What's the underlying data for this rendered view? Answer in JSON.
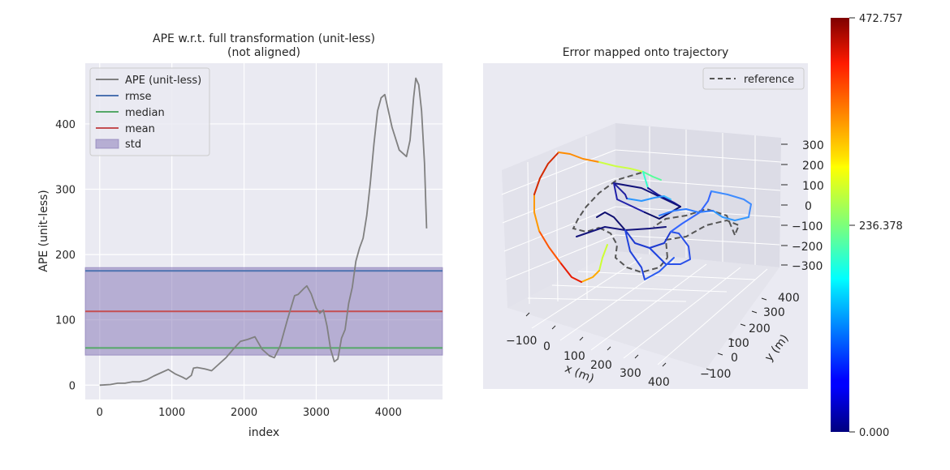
{
  "colors": {
    "axes_bg": "#eaeaf2",
    "grid": "#ffffff",
    "ape_line": "#808080",
    "rmse": "#4c72b0",
    "median": "#55a868",
    "mean": "#c44e52",
    "std_fill": "#8172b3",
    "reference": "#555555"
  },
  "chart_data": [
    {
      "type": "line",
      "title": "APE w.r.t. full transformation (unit-less)",
      "subtitle": "(not aligned)",
      "xlabel": "index",
      "ylabel": "APE (unit-less)",
      "xlim": [
        -200,
        4750
      ],
      "ylim": [
        -22,
        493
      ],
      "xticks": [
        0,
        1000,
        2000,
        3000,
        4000
      ],
      "yticks": [
        0,
        100,
        200,
        300,
        400
      ],
      "grid": true,
      "legend_position": "top-left",
      "legend": [
        "APE (unit-less)",
        "rmse",
        "median",
        "mean",
        "std"
      ],
      "series": [
        {
          "name": "APE (unit-less)",
          "x": [
            0,
            150,
            250,
            350,
            450,
            550,
            650,
            750,
            850,
            950,
            1050,
            1150,
            1200,
            1270,
            1300,
            1350,
            1450,
            1550,
            1650,
            1750,
            1850,
            1950,
            2050,
            2150,
            2250,
            2350,
            2420,
            2500,
            2600,
            2700,
            2750,
            2830,
            2870,
            2930,
            3000,
            3050,
            3100,
            3150,
            3200,
            3250,
            3300,
            3350,
            3400,
            3450,
            3500,
            3550,
            3600,
            3650,
            3700,
            3750,
            3800,
            3850,
            3900,
            3950,
            3980,
            4050,
            4150,
            4250,
            4300,
            4350,
            4380,
            4420,
            4460,
            4500,
            4530
          ],
          "y": [
            0,
            1,
            3,
            3,
            5,
            5,
            8,
            14,
            19,
            24,
            17,
            12,
            9,
            15,
            26,
            27,
            25,
            22,
            32,
            42,
            55,
            67,
            70,
            74,
            55,
            45,
            42,
            60,
            100,
            137,
            139,
            148,
            152,
            140,
            118,
            110,
            115,
            90,
            55,
            36,
            40,
            72,
            85,
            125,
            150,
            190,
            210,
            225,
            260,
            310,
            370,
            420,
            440,
            445,
            430,
            395,
            360,
            350,
            375,
            440,
            470,
            460,
            420,
            340,
            240
          ]
        },
        {
          "name": "rmse",
          "y": 175
        },
        {
          "name": "median",
          "y": 57
        },
        {
          "name": "mean",
          "y": 113
        },
        {
          "name": "std",
          "y_range": [
            46,
            180
          ]
        }
      ]
    },
    {
      "type": "line",
      "subtype": "3d_trajectory",
      "title": "Error mapped onto trajectory",
      "xlabel": "x (m)",
      "ylabel": "y (m)",
      "xticks": [
        -100,
        0,
        100,
        200,
        300,
        400
      ],
      "yticks": [
        -100,
        0,
        100,
        200,
        300,
        400
      ],
      "zticks": [
        300,
        200,
        100,
        0,
        -100,
        -200,
        -300
      ],
      "tick_labels": {
        "x": [
          "−100",
          "0",
          "100",
          "200",
          "300",
          "400"
        ],
        "y": [
          "−100",
          "0",
          "100",
          "200",
          "300",
          "400"
        ],
        "z": [
          "300",
          "200",
          "100",
          "0",
          "−100",
          "−200",
          "−300"
        ]
      },
      "legend_position": "top-right",
      "legend": [
        "reference"
      ],
      "colorbar": {
        "colormap": "jet",
        "range": [
          0.0,
          472.757
        ],
        "tick_labels": [
          "472.757",
          "236.378",
          "0.000"
        ]
      }
    }
  ]
}
